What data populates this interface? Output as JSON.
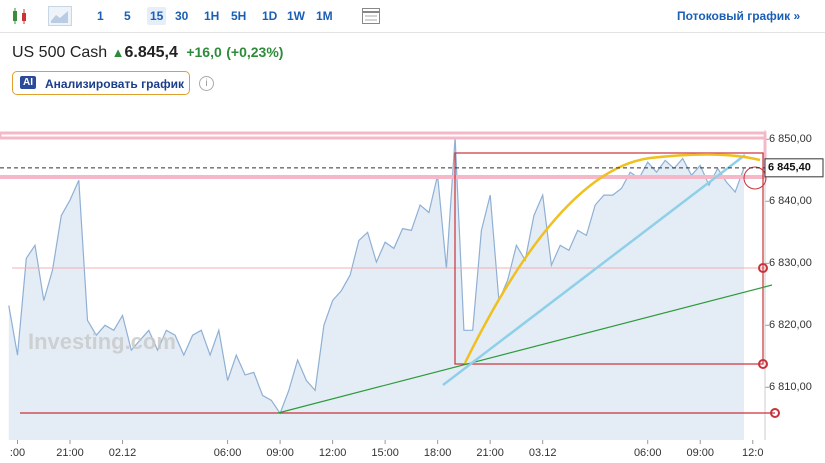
{
  "toolbar": {
    "timeframes": [
      "1",
      "5",
      "15",
      "30",
      "1H",
      "5H",
      "1D",
      "1W",
      "1M"
    ],
    "selected": "15",
    "stream_link": "Потоковый график »"
  },
  "header": {
    "instrument": "US 500 Cash",
    "price": "6.845,4",
    "change": "+16,0",
    "change_pct": "(+0,23%)"
  },
  "ai_button": {
    "badge": "AI",
    "label": "Анализировать график"
  },
  "info_icon": "i",
  "chart_data": {
    "type": "area",
    "watermark": "Investing.com",
    "x": [
      -0.5,
      0,
      0.5,
      1,
      1.5,
      2,
      2.5,
      3,
      3.5,
      4,
      4.5,
      5,
      5.5,
      6,
      6.5,
      7,
      7.5,
      8,
      8.5,
      9,
      9.5,
      10,
      10.5,
      11,
      11.5,
      12,
      12.5,
      13,
      13.5,
      14,
      14.5,
      15,
      15.5,
      16,
      16.5,
      17,
      17.5,
      18,
      18.5,
      19,
      19.5,
      20,
      20.5,
      21,
      21.5,
      22,
      22.5,
      23,
      23.5,
      24,
      24.5,
      25,
      25.5,
      26,
      26.5,
      27,
      27.5,
      28,
      28.5,
      29,
      29.5,
      30,
      30.5,
      31,
      31.5,
      32,
      32.5,
      33,
      33.5,
      34,
      34.5,
      35,
      35.5,
      36,
      36.5,
      37,
      37.5,
      38,
      38.5,
      39,
      39.5,
      40,
      40.5,
      41,
      41.5
    ],
    "series": [
      {
        "name": "US 500 Cash",
        "color": "#8fb0d4",
        "fill": "#e4edf6",
        "values": [
          6823.2,
          6815.2,
          6830.8,
          6832.9,
          6824,
          6828.9,
          6837.7,
          6840.2,
          6843.4,
          6820.8,
          6818.4,
          6820,
          6819.2,
          6821.6,
          6816,
          6817.6,
          6819.2,
          6816,
          6819.2,
          6818.4,
          6815.2,
          6818.4,
          6819.2,
          6815.2,
          6819.2,
          6811.1,
          6815.2,
          6812,
          6812.4,
          6808.7,
          6807.9,
          6805.8,
          6809.5,
          6814.4,
          6811.1,
          6809.5,
          6820,
          6824,
          6825.6,
          6828.1,
          6833.7,
          6835,
          6830.2,
          6833.4,
          6832.4,
          6835.6,
          6835.3,
          6839.4,
          6838.2,
          6844.2,
          6829.2,
          6850.3,
          6819.2,
          6819.2,
          6835.3,
          6841,
          6824,
          6827.3,
          6832.9,
          6830.5,
          6837.7,
          6841,
          6829.7,
          6832.9,
          6832.1,
          6835.3,
          6834.5,
          6839.4,
          6841,
          6841,
          6842.1,
          6844.7,
          6843.7,
          6846.3,
          6844.7,
          6846.6,
          6845.3,
          6846.9,
          6844.2,
          6845.8,
          6842.6,
          6845.3,
          6843.1,
          6841.5,
          6845.4
        ]
      }
    ],
    "xlim": [
      -1,
      42.7
    ],
    "xticks": [
      {
        "value": 0,
        "label": ":00"
      },
      {
        "value": 3,
        "label": "21:00"
      },
      {
        "value": 6,
        "label": "02.12"
      },
      {
        "value": 12,
        "label": "06:00"
      },
      {
        "value": 15,
        "label": "09:00"
      },
      {
        "value": 18,
        "label": "12:00"
      },
      {
        "value": 21,
        "label": "15:00"
      },
      {
        "value": 24,
        "label": "18:00"
      },
      {
        "value": 27,
        "label": "21:00"
      },
      {
        "value": 30,
        "label": "03.12"
      },
      {
        "value": 36,
        "label": "06:00"
      },
      {
        "value": 39,
        "label": "09:00"
      },
      {
        "value": 42,
        "label": "12:0"
      }
    ],
    "ylim": [
      6801.5,
      6851.5
    ],
    "yticks": [
      {
        "value": 6810,
        "label": "6 810,00"
      },
      {
        "value": 6820,
        "label": "6 820,00"
      },
      {
        "value": 6830,
        "label": "6 830,00"
      },
      {
        "value": 6840,
        "label": "6 840,00"
      },
      {
        "value": 6850,
        "label": "6 850,00"
      }
    ],
    "last": 6845.4,
    "last_label": "6 845,40"
  }
}
